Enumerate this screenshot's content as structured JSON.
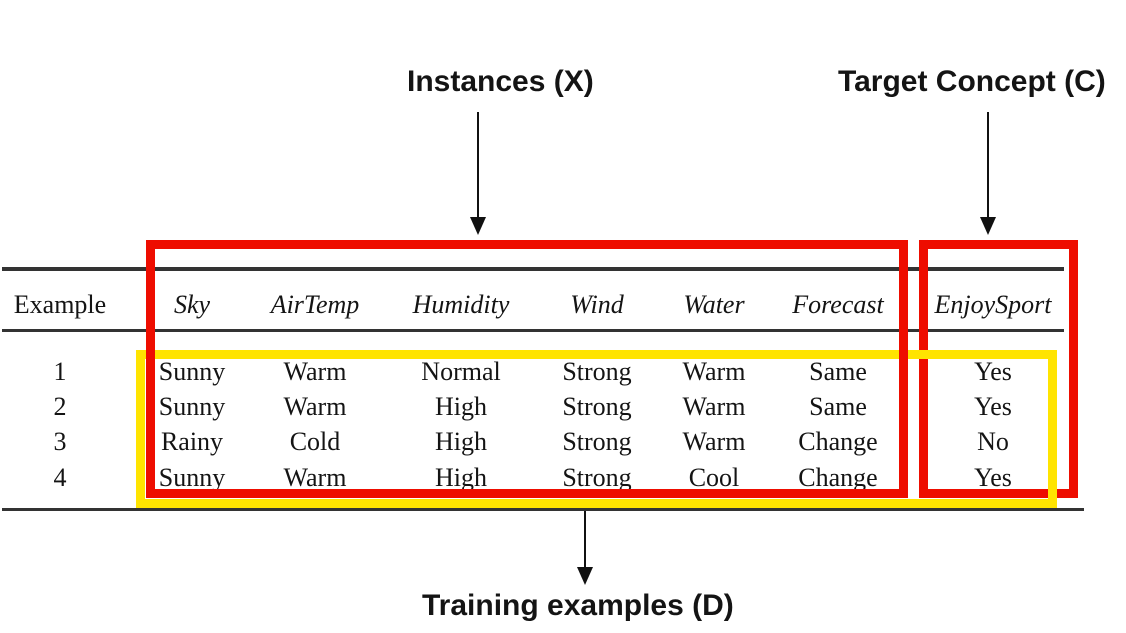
{
  "annotations": {
    "instances_label": "Instances (X)",
    "target_concept_label": "Target Concept (C)",
    "training_examples_label": "Training examples (D)"
  },
  "colors": {
    "highlight_red": "#ee0d00",
    "highlight_yellow": "#ffe400",
    "rule_gray": "#333333",
    "text_black": "#141414"
  },
  "table": {
    "headers": [
      "Example",
      "Sky",
      "AirTemp",
      "Humidity",
      "Wind",
      "Water",
      "Forecast",
      "EnjoySport"
    ],
    "rows": [
      [
        "1",
        "Sunny",
        "Warm",
        "Normal",
        "Strong",
        "Warm",
        "Same",
        "Yes"
      ],
      [
        "2",
        "Sunny",
        "Warm",
        "High",
        "Strong",
        "Warm",
        "Same",
        "Yes"
      ],
      [
        "3",
        "Rainy",
        "Cold",
        "High",
        "Strong",
        "Warm",
        "Change",
        "No"
      ],
      [
        "4",
        "Sunny",
        "Warm",
        "High",
        "Strong",
        "Cool",
        "Change",
        "Yes"
      ]
    ]
  }
}
